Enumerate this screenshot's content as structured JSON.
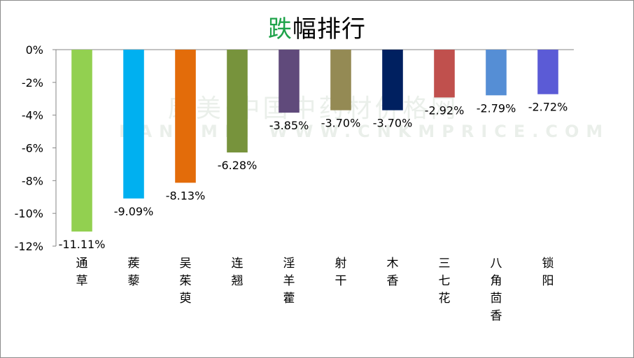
{
  "title": {
    "highlight": "跌",
    "rest": "幅排行",
    "highlight_color": "#1fa34a"
  },
  "watermark": {
    "line1": "康美·中国中药材价格网",
    "line2": "KANGMEI WWW.CNKMPRICE.COM"
  },
  "chart_data": {
    "type": "bar",
    "title": "跌幅排行",
    "categories": [
      "通草",
      "蒺藜",
      "吴茱萸",
      "连翘",
      "淫羊藿",
      "射干",
      "木香",
      "三七花",
      "八角茴香",
      "锁阳"
    ],
    "values": [
      -11.11,
      -9.09,
      -8.13,
      -6.28,
      -3.85,
      -3.7,
      -3.7,
      -2.92,
      -2.79,
      -2.72
    ],
    "data_labels": [
      "-11.11%",
      "-9.09%",
      "-8.13%",
      "-6.28%",
      "-3.85%",
      "-3.70%",
      "-3.70%",
      "-2.92%",
      "-2.79%",
      "-2.72%"
    ],
    "colors": [
      "#92d050",
      "#00b0f0",
      "#e36c0a",
      "#77933c",
      "#604a7b",
      "#948a54",
      "#002060",
      "#c0504d",
      "#558ed5",
      "#5b5bd6"
    ],
    "y_ticks": [
      0,
      -2,
      -4,
      -6,
      -8,
      -10,
      -12
    ],
    "y_tick_labels": [
      "0%",
      "-2%",
      "-4%",
      "-6%",
      "-8%",
      "-10%",
      "-12%"
    ],
    "ylim": [
      -12,
      0
    ],
    "xlabel": "",
    "ylabel": "",
    "grid": false,
    "legend": "none"
  }
}
